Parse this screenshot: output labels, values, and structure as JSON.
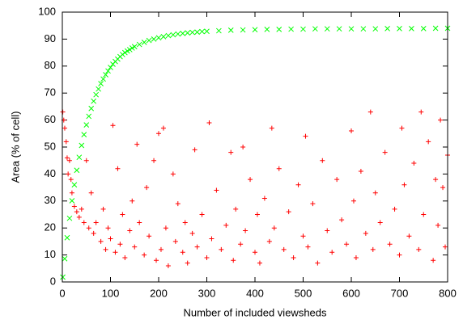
{
  "chart_data": {
    "type": "scatter",
    "xlabel": "Number of included viewsheds",
    "ylabel": "Area (% of cell)",
    "xlim": [
      0,
      800
    ],
    "xticks": [
      0,
      100,
      200,
      300,
      400,
      500,
      600,
      700,
      800
    ],
    "ylim": [
      0,
      100
    ],
    "yticks": [
      0,
      10,
      20,
      30,
      40,
      50,
      60,
      70,
      80,
      90,
      100
    ],
    "series": [
      {
        "color": "#ff0000",
        "marker": "plus",
        "x": [
          1,
          3,
          5,
          8,
          10,
          12,
          15,
          18,
          20,
          25,
          30,
          35,
          40,
          45,
          50,
          55,
          60,
          65,
          70,
          80,
          85,
          90,
          95,
          100,
          105,
          110,
          115,
          120,
          125,
          130,
          140,
          145,
          150,
          155,
          160,
          170,
          175,
          180,
          190,
          195,
          200,
          205,
          210,
          215,
          220,
          230,
          235,
          240,
          250,
          255,
          260,
          270,
          275,
          280,
          290,
          300,
          305,
          310,
          320,
          330,
          340,
          350,
          355,
          360,
          370,
          375,
          380,
          390,
          400,
          405,
          410,
          420,
          430,
          435,
          440,
          450,
          460,
          470,
          480,
          490,
          500,
          505,
          510,
          520,
          530,
          540,
          550,
          560,
          570,
          580,
          590,
          600,
          605,
          610,
          620,
          630,
          640,
          645,
          650,
          660,
          670,
          680,
          690,
          700,
          705,
          710,
          720,
          730,
          740,
          745,
          750,
          760,
          770,
          775,
          780,
          785,
          790,
          795,
          800
        ],
        "values": [
          63,
          60,
          57,
          52,
          46,
          40,
          45,
          38,
          33,
          28,
          26,
          24,
          27,
          22,
          45,
          20,
          33,
          18,
          22,
          15,
          27,
          12,
          20,
          16,
          58,
          11,
          42,
          14,
          25,
          9,
          19,
          30,
          13,
          51,
          22,
          10,
          35,
          17,
          45,
          8,
          55,
          12,
          57,
          20,
          6,
          40,
          15,
          29,
          11,
          22,
          7,
          18,
          49,
          13,
          25,
          9,
          59,
          16,
          34,
          12,
          21,
          48,
          8,
          27,
          14,
          50,
          19,
          38,
          11,
          25,
          7,
          31,
          15,
          57,
          20,
          42,
          12,
          26,
          9,
          36,
          17,
          54,
          13,
          29,
          7,
          45,
          19,
          11,
          38,
          23,
          14,
          56,
          30,
          9,
          41,
          18,
          63,
          12,
          33,
          22,
          48,
          14,
          27,
          10,
          57,
          36,
          17,
          44,
          12,
          63,
          25,
          52,
          8,
          38,
          21,
          60,
          35,
          13,
          47
        ]
      },
      {
        "color": "#00ff00",
        "marker": "cross",
        "x": [
          1,
          5,
          10,
          15,
          20,
          25,
          30,
          35,
          40,
          45,
          50,
          55,
          60,
          65,
          70,
          75,
          80,
          85,
          90,
          95,
          100,
          105,
          110,
          115,
          120,
          125,
          130,
          135,
          140,
          145,
          150,
          160,
          170,
          180,
          190,
          200,
          210,
          220,
          230,
          240,
          250,
          260,
          270,
          280,
          290,
          300,
          325,
          350,
          375,
          400,
          425,
          450,
          475,
          500,
          525,
          550,
          575,
          600,
          625,
          650,
          675,
          700,
          725,
          750,
          775,
          800
        ],
        "values": [
          1.8,
          8.6,
          16.4,
          23.6,
          30.1,
          36.0,
          41.4,
          46.2,
          50.6,
          54.6,
          58.2,
          61.4,
          64.3,
          67.0,
          69.4,
          71.5,
          73.5,
          75.2,
          76.8,
          78.2,
          79.5,
          80.7,
          81.7,
          82.6,
          83.5,
          84.3,
          85.0,
          85.6,
          86.1,
          86.7,
          87.2,
          88.0,
          88.8,
          89.5,
          90.0,
          90.5,
          90.9,
          91.3,
          91.6,
          91.9,
          92.1,
          92.3,
          92.5,
          92.6,
          92.8,
          92.9,
          93.1,
          93.3,
          93.4,
          93.5,
          93.6,
          93.6,
          93.7,
          93.7,
          93.8,
          93.8,
          93.8,
          93.8,
          93.8,
          93.8,
          93.9,
          93.9,
          93.9,
          93.9,
          94.0,
          94.0
        ]
      }
    ]
  }
}
